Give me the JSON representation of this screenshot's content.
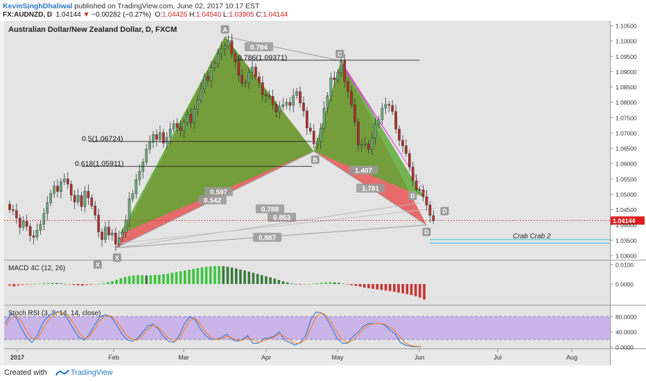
{
  "header": {
    "author": "KevinSinghDhaliwal",
    "published_text": "published on TradingView.com, June 02, 2017 10:17 EST",
    "symbol": "FX:AUDNZD, D",
    "last": "1.04144",
    "change": "−0.00282 (−0.27%)",
    "o_label": "O:",
    "o_value": "1.04426",
    "h_label": "H:",
    "h_value": "1.04540",
    "l_label": "L:",
    "l_value": "1.03905",
    "c_label": "C:",
    "c_value": "1.04144"
  },
  "chart_title": "Australian Dollar/New Zealand Dollar, D, FXCM",
  "footer": {
    "created_with": "Created with",
    "brand": "TradingView"
  },
  "colors": {
    "green": "#5aa832",
    "red": "#e85050",
    "magenta": "#e040d8",
    "up": "#6aa87a",
    "down": "#b03030",
    "macd_up": "#3cc43c",
    "macd_dn": "#c83232",
    "stoch_bg": "#c8aee8"
  },
  "chart_data": [
    {
      "type": "candlestick",
      "title": "Australian Dollar/New Zealand Dollar, D, FXCM",
      "ylim": [
        1.025,
        1.106
      ],
      "y_ticks": [
        "1.10500",
        "1.10000",
        "1.09500",
        "1.09000",
        "1.08500",
        "1.08000",
        "1.07500",
        "1.07000",
        "1.06500",
        "1.06000",
        "1.05500",
        "1.05000",
        "1.04500",
        "1.04000",
        "1.03500",
        "1.03000"
      ],
      "current_price": "1.04144",
      "x_ticks": [
        "2017",
        "Feb",
        "Mar",
        "Apr",
        "May",
        "Jun",
        "Jul",
        "Aug"
      ],
      "pattern_points": [
        {
          "label": "X",
          "price": 1.0325
        },
        {
          "label": "A",
          "price": 1.1015
        },
        {
          "label": "B",
          "price": 1.064
        },
        {
          "label": "C",
          "price": 1.0935
        },
        {
          "label": "D",
          "price": 1.04
        }
      ],
      "fib_levels": [
        {
          "label": "0.786(1.09371)",
          "price": 1.09371
        },
        {
          "label": "0.5(1.06724)",
          "price": 1.06724
        },
        {
          "label": "0.618(1.05911)",
          "price": 1.05911
        }
      ],
      "ratio_labels": [
        "0.784",
        "0.597",
        "0.542",
        "1.407",
        "1.781",
        "0.788",
        "0.853",
        "0.887"
      ],
      "annotation": "Crab  Crab 2",
      "close_series": [
        1.045,
        1.0447,
        1.0423,
        1.0392,
        1.0412,
        1.0395,
        1.0365,
        1.036,
        1.0383,
        1.0402,
        1.0438,
        1.0472,
        1.0503,
        1.0527,
        1.0509,
        1.0541,
        1.055,
        1.0533,
        1.0497,
        1.0475,
        1.0496,
        1.046,
        1.051,
        1.0488,
        1.0462,
        1.0432,
        1.0377,
        1.0352,
        1.0393,
        1.0367,
        1.0374,
        1.0338,
        1.0359,
        1.0376,
        1.0416,
        1.0485,
        1.0502,
        1.0548,
        1.0575,
        1.0605,
        1.0647,
        1.067,
        1.0695,
        1.0679,
        1.0702,
        1.0667,
        1.0686,
        1.0713,
        1.0731,
        1.0718,
        1.0708,
        1.0735,
        1.076,
        1.0733,
        1.0778,
        1.0808,
        1.0843,
        1.0884,
        1.0871,
        1.0913,
        1.0927,
        1.0958,
        1.0975,
        1.0983,
        1.1001,
        1.0958,
        1.0932,
        1.0888,
        1.0862,
        1.0863,
        1.0897,
        1.0915,
        1.0883,
        1.0864,
        1.0825,
        1.0822,
        1.0819,
        1.0792,
        1.0769,
        1.0786,
        1.0792,
        1.08,
        1.079,
        1.0822,
        1.0835,
        1.0798,
        1.0772,
        1.0716,
        1.0706,
        1.0665,
        1.0673,
        1.0715,
        1.0781,
        1.0821,
        1.088,
        1.0873,
        1.0897,
        1.0935,
        1.0868,
        1.0835,
        1.0792,
        1.0736,
        1.0661,
        1.0663,
        1.0665,
        1.0647,
        1.0684,
        1.0727,
        1.0743,
        1.0781,
        1.0793,
        1.079,
        1.077,
        1.0713,
        1.0676,
        1.0658,
        1.0633,
        1.0589,
        1.0544,
        1.0515,
        1.0514,
        1.0492,
        1.0465,
        1.0431,
        1.0414
      ]
    },
    {
      "type": "bar",
      "title": "MACD 4C (12, 26)",
      "y_ticks": [
        "0.0100",
        "0.0000"
      ],
      "ylim": [
        -0.014,
        0.012
      ],
      "values": [
        -0.0011,
        -0.0012,
        -0.0009,
        -0.0006,
        -0.0003,
        -0.0002,
        0.0,
        0.0002,
        0.0004,
        0.0005,
        0.0006,
        0.0005,
        0.0003,
        0.0001,
        -0.0002,
        -0.0005,
        -0.0007,
        -0.0008,
        -0.0007,
        -0.0005,
        -0.0002,
        0.0001,
        0.0004,
        0.0009,
        0.0015,
        0.0022,
        0.003,
        0.0036,
        0.0041,
        0.0044,
        0.0046,
        0.0046,
        0.0044,
        0.0045,
        0.0047,
        0.0048,
        0.005,
        0.0053,
        0.0058,
        0.0062,
        0.0066,
        0.007,
        0.0074,
        0.0078,
        0.0082,
        0.0086,
        0.0089,
        0.0091,
        0.0093,
        0.0093,
        0.0092,
        0.0089,
        0.0085,
        0.008,
        0.0075,
        0.007,
        0.0064,
        0.0058,
        0.0052,
        0.0046,
        0.004,
        0.0034,
        0.0028,
        0.0021,
        0.0014,
        0.0008,
        0.0003,
        0.0,
        -0.0002,
        -0.0002,
        0.0,
        0.0002,
        0.0004,
        0.0006,
        0.0008,
        0.0009,
        0.0008,
        0.0006,
        0.0002,
        -0.0002,
        -0.0006,
        -0.001,
        -0.0014,
        -0.0018,
        -0.0022,
        -0.0025,
        -0.0028,
        -0.0031,
        -0.0034,
        -0.0037,
        -0.004,
        -0.0044,
        -0.0048,
        -0.0052,
        -0.0057,
        -0.0063,
        -0.007,
        -0.008
      ]
    },
    {
      "type": "line",
      "title": "Stoch RSI (3, 3, 14, 14, close)",
      "y_ticks": [
        "80.0000",
        "40.0000",
        "0.0000"
      ],
      "ylim": [
        0,
        100
      ],
      "bands": [
        80,
        20
      ],
      "series": [
        {
          "color": "#2a7ad8",
          "values": [
            62,
            88,
            78,
            50,
            25,
            12,
            30,
            62,
            80,
            90,
            93,
            88,
            70,
            45,
            25,
            18,
            35,
            60,
            80,
            85,
            80,
            60,
            36,
            20,
            15,
            22,
            38,
            55,
            60,
            48,
            28,
            15,
            12,
            30,
            62,
            80,
            72,
            48,
            30,
            20,
            20,
            25,
            34,
            20,
            15,
            20,
            30,
            10,
            10,
            22,
            24,
            28,
            40,
            18,
            12,
            5,
            12,
            30,
            72,
            92,
            90,
            75,
            50,
            22,
            10,
            10,
            28,
            40,
            55,
            62,
            62,
            62,
            58,
            45,
            35,
            12,
            5,
            2,
            1,
            1
          ]
        },
        {
          "color": "#f08020",
          "values": [
            55,
            75,
            82,
            68,
            42,
            22,
            22,
            45,
            68,
            85,
            91,
            90,
            80,
            60,
            38,
            22,
            28,
            48,
            70,
            82,
            82,
            70,
            50,
            30,
            20,
            18,
            30,
            46,
            58,
            52,
            38,
            22,
            15,
            22,
            45,
            70,
            75,
            60,
            40,
            25,
            20,
            22,
            28,
            25,
            18,
            18,
            25,
            20,
            12,
            16,
            22,
            26,
            34,
            28,
            18,
            10,
            10,
            20,
            50,
            80,
            90,
            82,
            62,
            38,
            18,
            12,
            18,
            32,
            48,
            58,
            62,
            62,
            60,
            52,
            42,
            25,
            10,
            4,
            2,
            1
          ]
        }
      ]
    }
  ]
}
